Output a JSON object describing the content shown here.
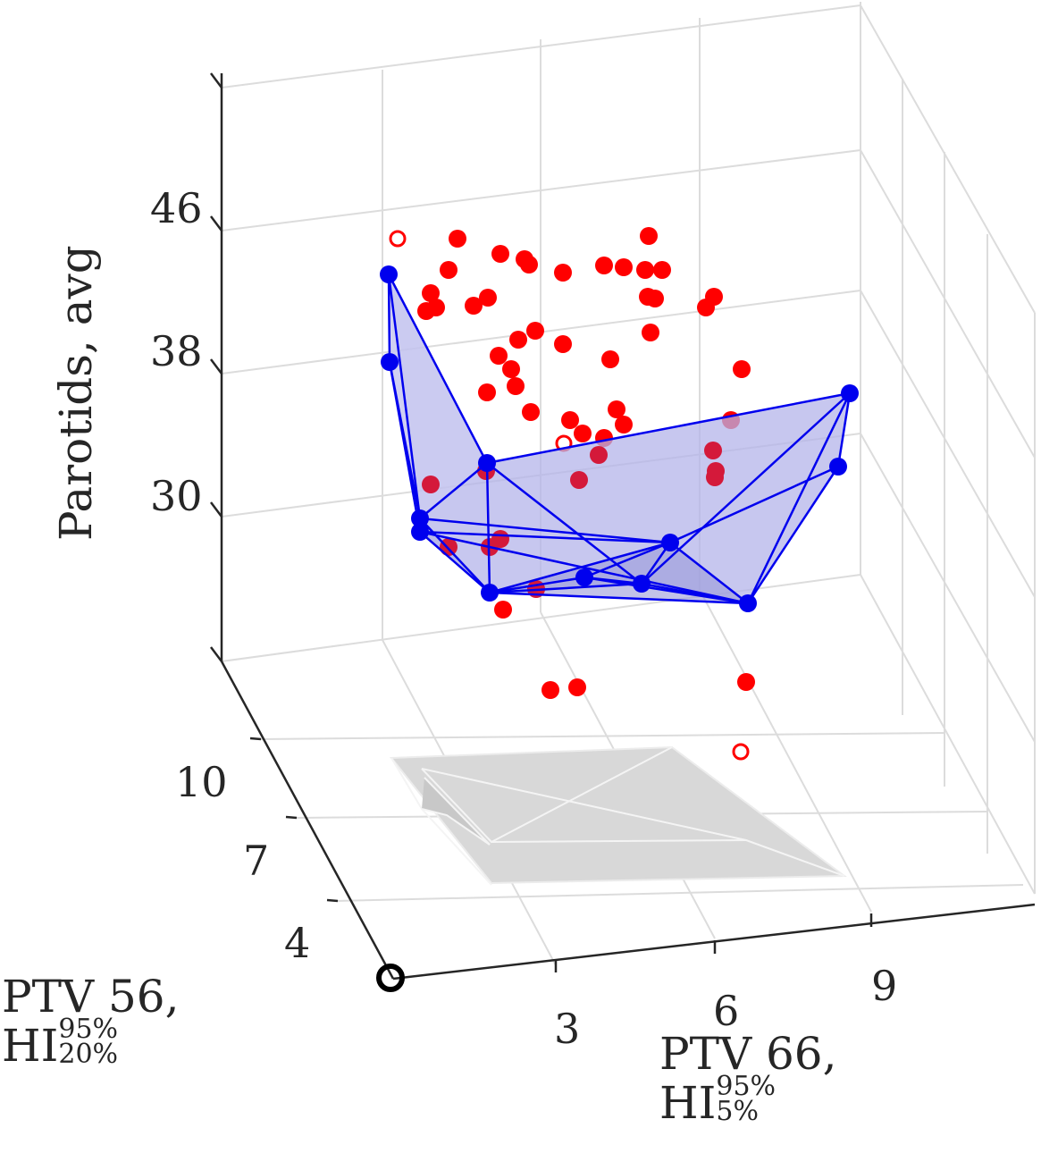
{
  "chart_data": {
    "type": "scatter",
    "axes": {
      "x": {
        "label_line1": "PTV 66,",
        "label_hi": "HI",
        "label_sup": "95%",
        "label_sub": "5%",
        "ticks": [
          "3",
          "6",
          "9"
        ]
      },
      "y": {
        "label_line1": "PTV 56,",
        "label_hi": "HI",
        "label_sup": "95%",
        "label_sub": "20%",
        "ticks": [
          "4",
          "7",
          "10"
        ]
      },
      "z": {
        "label": "Parotids, avg",
        "ticks": [
          "30",
          "38",
          "46"
        ]
      }
    },
    "grid": true,
    "colors": {
      "red_points": "#ff0000",
      "blue_front": "#0000ee",
      "blue_face": "#b8b8ee",
      "shadow": "#d6d6d6",
      "grid": "#dcdcdc",
      "axis": "#262626"
    }
  }
}
